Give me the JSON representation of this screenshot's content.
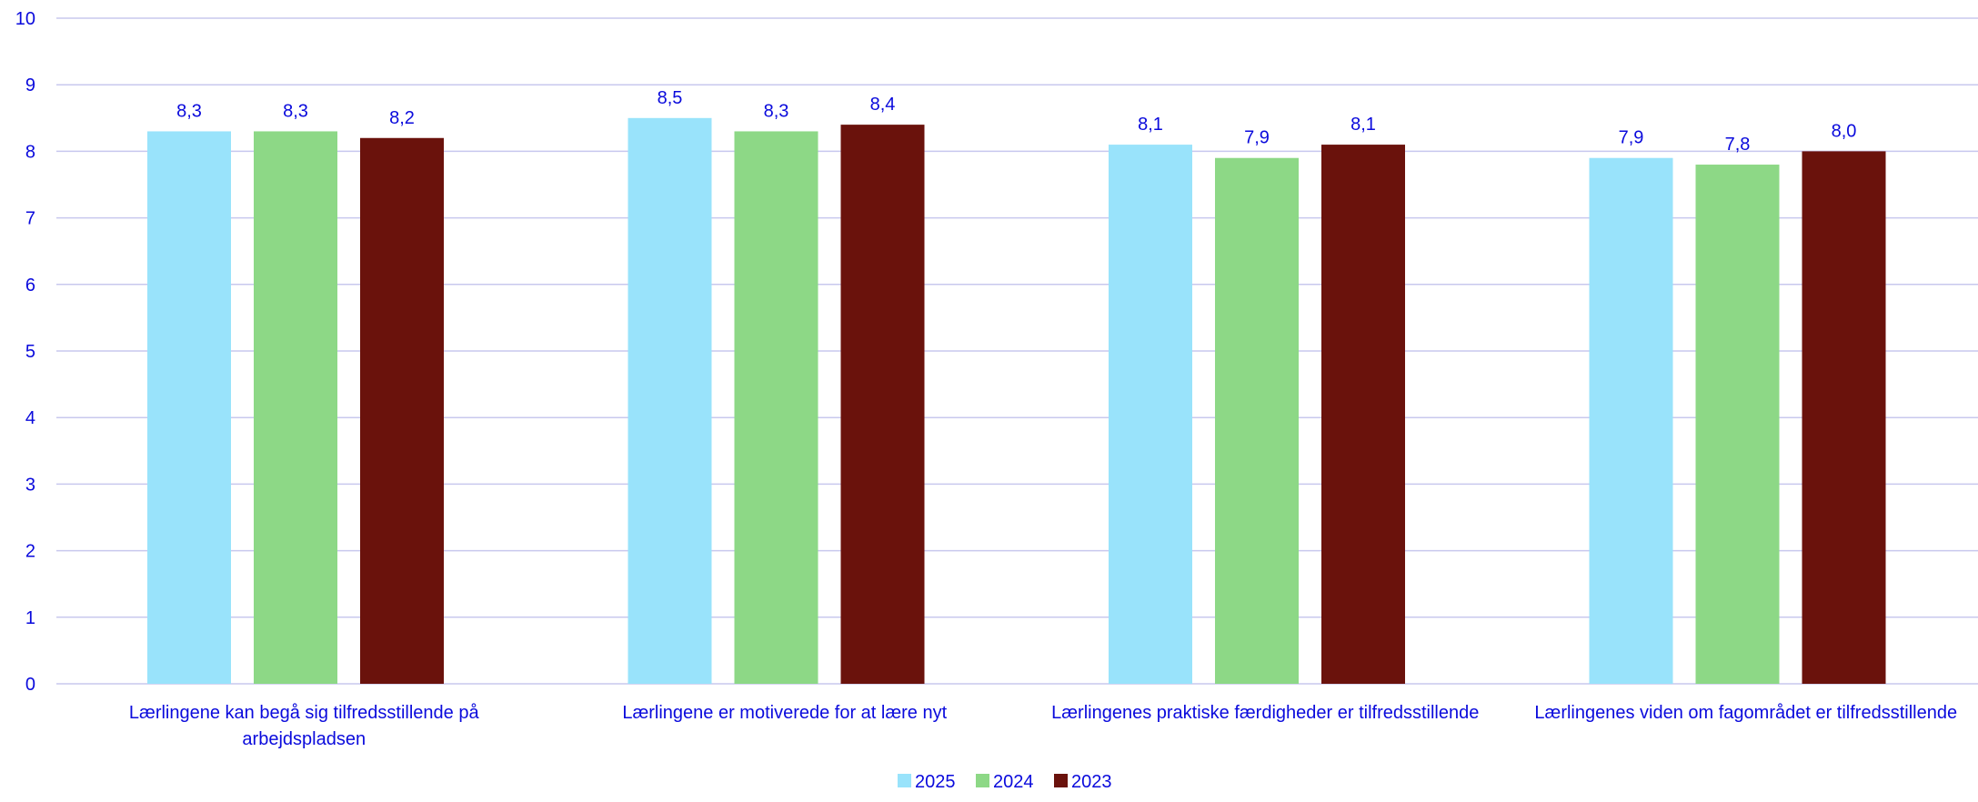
{
  "chart_data": {
    "type": "bar",
    "categories": [
      [
        "Lærlingene kan begå sig tilfredsstillende på",
        "arbejdspladsen"
      ],
      [
        "Lærlingene er motiverede for at lære nyt"
      ],
      [
        "Lærlingenes praktiske færdigheder er tilfredsstillende"
      ],
      [
        "Lærlingenes viden om fagområdet er tilfredsstillende"
      ]
    ],
    "series": [
      {
        "name": "2025",
        "color": "#99e3fb",
        "values": [
          8.3,
          8.5,
          8.1,
          7.9
        ]
      },
      {
        "name": "2024",
        "color": "#8dd886",
        "values": [
          8.3,
          8.3,
          7.9,
          7.8
        ]
      },
      {
        "name": "2023",
        "color": "#6a120c",
        "values": [
          8.2,
          8.4,
          8.1,
          8.0
        ]
      }
    ],
    "data_labels": [
      [
        "8,3",
        "8,5",
        "8,1",
        "7,9"
      ],
      [
        "8,3",
        "8,3",
        "7,9",
        "7,8"
      ],
      [
        "8,2",
        "8,4",
        "8,1",
        "8,0"
      ]
    ],
    "y_ticks": [
      "0",
      "1",
      "2",
      "3",
      "4",
      "5",
      "6",
      "7",
      "8",
      "9",
      "10"
    ],
    "ylim": [
      0,
      10
    ],
    "title": "",
    "xlabel": "",
    "ylabel": "",
    "grid": true,
    "legend_position": "bottom",
    "text_color": "#0a0adc",
    "grid_color": "#c8c8ee"
  }
}
